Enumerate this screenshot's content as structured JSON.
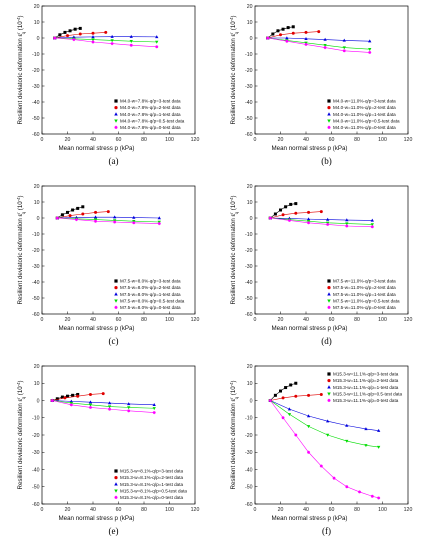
{
  "colors": {
    "q3": "#000000",
    "q2": "#e00000",
    "q1": "#0000dd",
    "q05": "#00dd00",
    "q0": "#ff00ff"
  },
  "chart_data": [
    {
      "type": "scatter",
      "caption": "(a)",
      "xlabel": "Mean normal stress p (kPa)",
      "ylabel": "Resilient deviatoric deformation ε",
      "ylabel_sup": "r",
      "ylabel_sub": "q",
      "ylabel_unit": "(10",
      "ylabel_exp": "-4",
      "ylabel_end": ")",
      "xlim": [
        0,
        120
      ],
      "ylim": [
        -60,
        20
      ],
      "xticks": [
        "0",
        "20",
        "40",
        "60",
        "80",
        "100",
        "120"
      ],
      "yticks": [
        "-60",
        "-50",
        "-40",
        "-30",
        "-20",
        "-10",
        "0",
        "10",
        "20"
      ],
      "legend_position": "bottom-right",
      "series": [
        {
          "name": "M4.0-w=7.8%-q/p=3-test data",
          "color_key": "q3",
          "marker": "square",
          "x": [
            10,
            14,
            18,
            22,
            26,
            30
          ],
          "y": [
            0,
            2,
            3.5,
            4.5,
            5.5,
            6
          ]
        },
        {
          "name": "M4.0-w=7.8%-q/p=2-test data",
          "color_key": "q2",
          "marker": "circle",
          "x": [
            10,
            20,
            30,
            40,
            50
          ],
          "y": [
            0,
            1.5,
            2.5,
            3,
            3.5
          ]
        },
        {
          "name": "M4.0-w=7.8%-q/p=1-test data",
          "color_key": "q1",
          "marker": "triangle-up",
          "x": [
            10,
            25,
            40,
            55,
            70,
            90
          ],
          "y": [
            0,
            0.5,
            0.7,
            0.8,
            0.8,
            0.7
          ]
        },
        {
          "name": "M4.0-w=7.8%-q/p=0.5-test data",
          "color_key": "q05",
          "marker": "triangle-down",
          "x": [
            10,
            25,
            40,
            55,
            70,
            90
          ],
          "y": [
            0,
            -0.5,
            -1,
            -1.5,
            -2,
            -2.5
          ]
        },
        {
          "name": "M4.0-w=7.8%-q/p=0-test data",
          "color_key": "q0",
          "marker": "star",
          "x": [
            10,
            25,
            40,
            55,
            70,
            90
          ],
          "y": [
            0,
            -1,
            -2.5,
            -3.5,
            -4.5,
            -5.5
          ]
        }
      ]
    },
    {
      "type": "scatter",
      "caption": "(b)",
      "xlabel": "Mean normal stress p (kPa)",
      "ylabel": "Resilient deviatoric deformation ε",
      "ylabel_sup": "r",
      "ylabel_sub": "q",
      "ylabel_unit": "(10",
      "ylabel_exp": "-4",
      "ylabel_end": ")",
      "xlim": [
        0,
        120
      ],
      "ylim": [
        -60,
        20
      ],
      "xticks": [
        "0",
        "20",
        "40",
        "60",
        "80",
        "100",
        "120"
      ],
      "yticks": [
        "-60",
        "-50",
        "-40",
        "-30",
        "-20",
        "-10",
        "0",
        "10",
        "20"
      ],
      "legend_position": "bottom-right",
      "series": [
        {
          "name": "M4.0-w=11.0%-q/p=3-test data",
          "color_key": "q3",
          "marker": "square",
          "x": [
            10,
            14,
            18,
            22,
            26,
            30
          ],
          "y": [
            0,
            2.5,
            4.5,
            5.5,
            6.5,
            7
          ]
        },
        {
          "name": "M4.0-w=11.0%-q/p=2-test data",
          "color_key": "q2",
          "marker": "circle",
          "x": [
            10,
            20,
            30,
            40,
            50
          ],
          "y": [
            0,
            2,
            3,
            3.5,
            4
          ]
        },
        {
          "name": "M4.0-w=11.0%-q/p=1-test data",
          "color_key": "q1",
          "marker": "triangle-up",
          "x": [
            10,
            25,
            40,
            55,
            70,
            90
          ],
          "y": [
            0,
            0,
            -0.5,
            -1,
            -1.5,
            -2
          ]
        },
        {
          "name": "M4.0-w=11.0%-q/p=0.5-test data",
          "color_key": "q05",
          "marker": "triangle-down",
          "x": [
            10,
            25,
            40,
            55,
            70,
            90
          ],
          "y": [
            0,
            -1.5,
            -3,
            -4.5,
            -6,
            -7
          ]
        },
        {
          "name": "M4.0-w=11.0%-q/p=0-test data",
          "color_key": "q0",
          "marker": "star",
          "x": [
            10,
            25,
            40,
            55,
            70,
            90
          ],
          "y": [
            0,
            -2,
            -4,
            -6,
            -8,
            -9
          ]
        }
      ]
    },
    {
      "type": "scatter",
      "caption": "(c)",
      "xlabel": "Mean normal stress p (kPa)",
      "ylabel": "Resilient deviatoric deformation ε",
      "ylabel_sup": "r",
      "ylabel_sub": "q",
      "ylabel_unit": "(10",
      "ylabel_exp": "-4",
      "ylabel_end": ")",
      "xlim": [
        0,
        120
      ],
      "ylim": [
        -60,
        20
      ],
      "xticks": [
        "0",
        "20",
        "40",
        "60",
        "80",
        "100",
        "120"
      ],
      "yticks": [
        "-60",
        "-50",
        "-40",
        "-30",
        "-20",
        "-10",
        "0",
        "10",
        "20"
      ],
      "legend_position": "bottom-right",
      "series": [
        {
          "name": "M7.5-w=8.0%-q/p=3-test data",
          "color_key": "q3",
          "marker": "square",
          "x": [
            12,
            16,
            20,
            24,
            28,
            32
          ],
          "y": [
            0,
            2,
            3.5,
            5,
            6,
            7
          ]
        },
        {
          "name": "M7.5-w=8.0%-q/p=2-test data",
          "color_key": "q2",
          "marker": "circle",
          "x": [
            12,
            22,
            32,
            42,
            52
          ],
          "y": [
            0,
            1.5,
            2.5,
            3.5,
            4
          ]
        },
        {
          "name": "M7.5-w=8.0%-q/p=1-test data",
          "color_key": "q1",
          "marker": "triangle-up",
          "x": [
            12,
            27,
            42,
            57,
            72,
            92
          ],
          "y": [
            0,
            0.3,
            0.5,
            0.5,
            0.3,
            0
          ]
        },
        {
          "name": "M7.5-w=8.0%-q/p=0.5-test data",
          "color_key": "q05",
          "marker": "triangle-down",
          "x": [
            12,
            27,
            42,
            57,
            72,
            92
          ],
          "y": [
            0,
            -0.5,
            -1,
            -1.5,
            -2,
            -2.5
          ]
        },
        {
          "name": "M7.5-w=8.0%-q/p=0-test data",
          "color_key": "q0",
          "marker": "star",
          "x": [
            12,
            27,
            42,
            57,
            72,
            92
          ],
          "y": [
            0,
            -1,
            -2,
            -2.5,
            -3,
            -3.5
          ]
        }
      ]
    },
    {
      "type": "scatter",
      "caption": "(d)",
      "xlabel": "Mean normal stress p (kPa)",
      "ylabel": "Resilient deviatoric deformation ε",
      "ylabel_sup": "r",
      "ylabel_sub": "q",
      "ylabel_unit": "(10",
      "ylabel_exp": "-4",
      "ylabel_end": ")",
      "xlim": [
        0,
        120
      ],
      "ylim": [
        -60,
        20
      ],
      "xticks": [
        "0",
        "20",
        "40",
        "60",
        "80",
        "100",
        "120"
      ],
      "yticks": [
        "-60",
        "-50",
        "-40",
        "-30",
        "-20",
        "-10",
        "0",
        "10",
        "20"
      ],
      "legend_position": "bottom-right",
      "series": [
        {
          "name": "M7.5-w=11.0%-q/p=3-test data",
          "color_key": "q3",
          "marker": "square",
          "x": [
            12,
            16,
            20,
            24,
            28,
            32
          ],
          "y": [
            0,
            2.5,
            5,
            7,
            8.5,
            9
          ]
        },
        {
          "name": "M7.5-w=11.0%-q/p=2-test data",
          "color_key": "q2",
          "marker": "circle",
          "x": [
            12,
            22,
            32,
            42,
            52
          ],
          "y": [
            0,
            2,
            3,
            3.5,
            4
          ]
        },
        {
          "name": "M7.5-w=11.0%-q/p=1-test data",
          "color_key": "q1",
          "marker": "triangle-up",
          "x": [
            12,
            27,
            42,
            57,
            72,
            92
          ],
          "y": [
            0,
            -0.3,
            -0.7,
            -1,
            -1.3,
            -1.5
          ]
        },
        {
          "name": "M7.5-w=11.0%-q/p=0.5-test data",
          "color_key": "q05",
          "marker": "triangle-down",
          "x": [
            12,
            27,
            42,
            57,
            72,
            92
          ],
          "y": [
            0,
            -1,
            -2,
            -3,
            -3.5,
            -4
          ]
        },
        {
          "name": "M7.5-w=11.0%-q/p=0-test data",
          "color_key": "q0",
          "marker": "star",
          "x": [
            12,
            27,
            42,
            57,
            72,
            92
          ],
          "y": [
            0,
            -1.5,
            -3,
            -4,
            -5,
            -5.5
          ]
        }
      ]
    },
    {
      "type": "scatter",
      "caption": "(e)",
      "xlabel": "Mean normal stress p (kPa)",
      "ylabel": "Resilient deviatoric deformation ε",
      "ylabel_sup": "r",
      "ylabel_sub": "q",
      "ylabel_unit": "(10",
      "ylabel_exp": "-4",
      "ylabel_end": ")",
      "xlim": [
        0,
        120
      ],
      "ylim": [
        -60,
        20
      ],
      "xticks": [
        "0",
        "20",
        "40",
        "60",
        "80",
        "100",
        "120"
      ],
      "yticks": [
        "-60",
        "-50",
        "-40",
        "-30",
        "-20",
        "-10",
        "0",
        "10",
        "20"
      ],
      "legend_position": "bottom-right",
      "series": [
        {
          "name": "M15.3-w=8.1%-q/p=3-test data",
          "color_key": "q3",
          "marker": "square",
          "x": [
            8,
            12,
            16,
            20,
            24,
            28
          ],
          "y": [
            0,
            1,
            2,
            2.5,
            3,
            3.5
          ]
        },
        {
          "name": "M15.3-w=8.1%-q/p=2-test data",
          "color_key": "q2",
          "marker": "circle",
          "x": [
            8,
            18,
            28,
            38,
            48
          ],
          "y": [
            0,
            1.5,
            2.5,
            3.5,
            4
          ]
        },
        {
          "name": "M15.3-w=8.1%-q/p=1-test data",
          "color_key": "q1",
          "marker": "triangle-up",
          "x": [
            8,
            23,
            38,
            53,
            68,
            88
          ],
          "y": [
            0,
            -0.5,
            -1,
            -1.5,
            -2,
            -2.5
          ]
        },
        {
          "name": "M15.3-w=8.1%-q/p=0.5-test data",
          "color_key": "q05",
          "marker": "triangle-down",
          "x": [
            8,
            23,
            38,
            53,
            68,
            88
          ],
          "y": [
            0,
            -1.5,
            -2.5,
            -3.5,
            -4,
            -4.5
          ]
        },
        {
          "name": "M15.3-w=8.1%-q/p=0-test data",
          "color_key": "q0",
          "marker": "star",
          "x": [
            8,
            23,
            38,
            53,
            68,
            88
          ],
          "y": [
            0,
            -2.5,
            -4,
            -5,
            -6,
            -7
          ]
        }
      ]
    },
    {
      "type": "scatter",
      "caption": "(f)",
      "xlabel": "Mean normal stress p (kPa)",
      "ylabel": "Resilient deviatoric deformation ε",
      "ylabel_sup": "r",
      "ylabel_sub": "q",
      "ylabel_unit": "(10",
      "ylabel_exp": "-4",
      "ylabel_end": ")",
      "xlim": [
        0,
        120
      ],
      "ylim": [
        -60,
        20
      ],
      "xticks": [
        "0",
        "20",
        "40",
        "60",
        "80",
        "100",
        "120"
      ],
      "yticks": [
        "-60",
        "-50",
        "-40",
        "-30",
        "-20",
        "-10",
        "0",
        "10",
        "20"
      ],
      "legend_position": "top-right",
      "series": [
        {
          "name": "M15.3-w=11.1%-q/p=3-test data",
          "color_key": "q3",
          "marker": "square",
          "x": [
            12,
            16,
            20,
            24,
            28,
            32
          ],
          "y": [
            0,
            3,
            5.5,
            7.5,
            9,
            10
          ]
        },
        {
          "name": "M15.3-w=11.1%-q/p=2-test data",
          "color_key": "q2",
          "marker": "circle",
          "x": [
            12,
            22,
            32,
            42,
            52
          ],
          "y": [
            0,
            1.5,
            2.5,
            3,
            3.5
          ]
        },
        {
          "name": "M15.3-w=11.1%-q/p=1-test data",
          "color_key": "q1",
          "marker": "triangle-up",
          "x": [
            12,
            27,
            42,
            57,
            72,
            87,
            97
          ],
          "y": [
            0,
            -5,
            -9,
            -12,
            -14.5,
            -16.5,
            -17.5
          ]
        },
        {
          "name": "M15.3-w=11.1%-q/p=0.5-test data",
          "color_key": "q05",
          "marker": "triangle-down",
          "x": [
            12,
            27,
            42,
            57,
            72,
            87,
            97
          ],
          "y": [
            0,
            -8,
            -15,
            -20,
            -23.5,
            -26,
            -27
          ]
        },
        {
          "name": "M15.3-w=11.1%-q/p=0-test data",
          "color_key": "q0",
          "marker": "star",
          "x": [
            12,
            22,
            32,
            42,
            52,
            62,
            72,
            82,
            92,
            97
          ],
          "y": [
            0,
            -10,
            -20,
            -30,
            -38,
            -45,
            -50,
            -53,
            -55.5,
            -56.5
          ]
        }
      ]
    }
  ]
}
